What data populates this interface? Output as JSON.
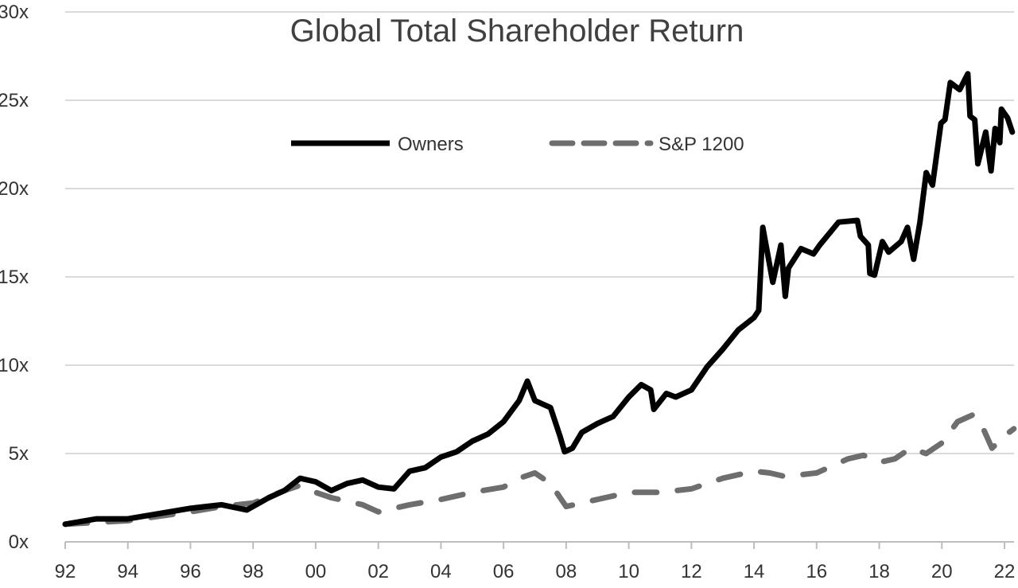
{
  "chart_data": {
    "type": "line",
    "title": "Global Total Shareholder Return",
    "xlabel": "",
    "ylabel": "",
    "xlim": [
      1992,
      2022.4
    ],
    "ylim": [
      0,
      30
    ],
    "grid": true,
    "legend_position": "top-center",
    "y_ticks": [
      "0x",
      "5x",
      "10x",
      "15x",
      "20x",
      "25x",
      "30x"
    ],
    "x_ticks": [
      "92",
      "94",
      "96",
      "98",
      "00",
      "02",
      "04",
      "06",
      "08",
      "10",
      "12",
      "14",
      "16",
      "18",
      "20",
      "22"
    ],
    "series": [
      {
        "name": "Owners",
        "color": "#000000",
        "style": "solid",
        "x": [
          1992,
          1993,
          1994,
          1995,
          1996,
          1997,
          1997.8,
          1998.5,
          1999,
          1999.5,
          2000,
          2000.5,
          2001,
          2001.5,
          2002,
          2002.5,
          2003,
          2003.5,
          2004,
          2004.5,
          2005,
          2005.5,
          2006,
          2006.5,
          2006.76,
          2007,
          2007.5,
          2007.8,
          2007.95,
          2008.2,
          2008.5,
          2009,
          2009.5,
          2010,
          2010.4,
          2010.7,
          2010.8,
          2011.2,
          2011.5,
          2012,
          2012.5,
          2013,
          2013.5,
          2014,
          2014.15,
          2014.28,
          2014.6,
          2014.86,
          2015.0,
          2015.1,
          2015.5,
          2015.9,
          2016.1,
          2016.7,
          2017.3,
          2017.4,
          2017.65,
          2017.7,
          2017.85,
          2018.1,
          2018.3,
          2018.7,
          2018.9,
          2019.1,
          2019.3,
          2019.5,
          2019.7,
          2019.97,
          2020.1,
          2020.27,
          2020.57,
          2020.83,
          2020.9,
          2021.05,
          2021.15,
          2021.4,
          2021.57,
          2021.7,
          2021.85,
          2021.9,
          2022.1,
          2022.25
        ],
        "values": [
          1.0,
          1.3,
          1.3,
          1.6,
          1.9,
          2.1,
          1.8,
          2.5,
          2.9,
          3.6,
          3.4,
          2.9,
          3.3,
          3.5,
          3.1,
          3.0,
          4.0,
          4.2,
          4.8,
          5.1,
          5.7,
          6.1,
          6.8,
          8.0,
          9.1,
          8.0,
          7.6,
          6.0,
          5.1,
          5.3,
          6.2,
          6.7,
          7.1,
          8.2,
          8.9,
          8.6,
          7.5,
          8.4,
          8.2,
          8.6,
          9.9,
          10.9,
          12.0,
          12.7,
          13.1,
          17.8,
          14.7,
          16.8,
          13.9,
          15.5,
          16.6,
          16.3,
          16.8,
          18.1,
          18.2,
          17.3,
          16.8,
          15.2,
          15.1,
          17.0,
          16.4,
          17.0,
          17.8,
          16.0,
          18.1,
          20.9,
          20.2,
          23.7,
          23.9,
          26.0,
          25.6,
          26.5,
          24.1,
          23.9,
          21.4,
          23.2,
          21.0,
          23.4,
          22.6,
          24.5,
          24.0,
          23.2
        ]
      },
      {
        "name": "S&P 1200",
        "color": "#6e6e6e",
        "style": "dashed",
        "x": [
          1992,
          1994,
          1996,
          1997,
          1998,
          1999,
          1999.5,
          2000,
          2000.5,
          2001,
          2001.5,
          2002,
          2003,
          2004,
          2004.5,
          2005,
          2006,
          2006.5,
          2007,
          2007.5,
          2008,
          2009,
          2009.5,
          2010,
          2011,
          2012,
          2013,
          2014,
          2014.5,
          2015,
          2016,
          2017,
          2017.5,
          2018,
          2018.5,
          2019,
          2019.5,
          2020,
          2020.5,
          2021,
          2021.3,
          2021.6,
          2022,
          2022.3
        ],
        "values": [
          1.0,
          1.2,
          1.7,
          2.0,
          2.2,
          2.9,
          3.2,
          2.8,
          2.5,
          2.3,
          2.1,
          1.7,
          2.1,
          2.4,
          2.6,
          2.8,
          3.1,
          3.6,
          3.9,
          3.3,
          2.0,
          2.4,
          2.6,
          2.8,
          2.8,
          3.0,
          3.6,
          4.0,
          3.9,
          3.7,
          3.9,
          4.7,
          4.9,
          4.5,
          4.7,
          5.3,
          5.0,
          5.6,
          6.8,
          7.2,
          6.5,
          5.3,
          6.0,
          6.4
        ]
      }
    ]
  }
}
